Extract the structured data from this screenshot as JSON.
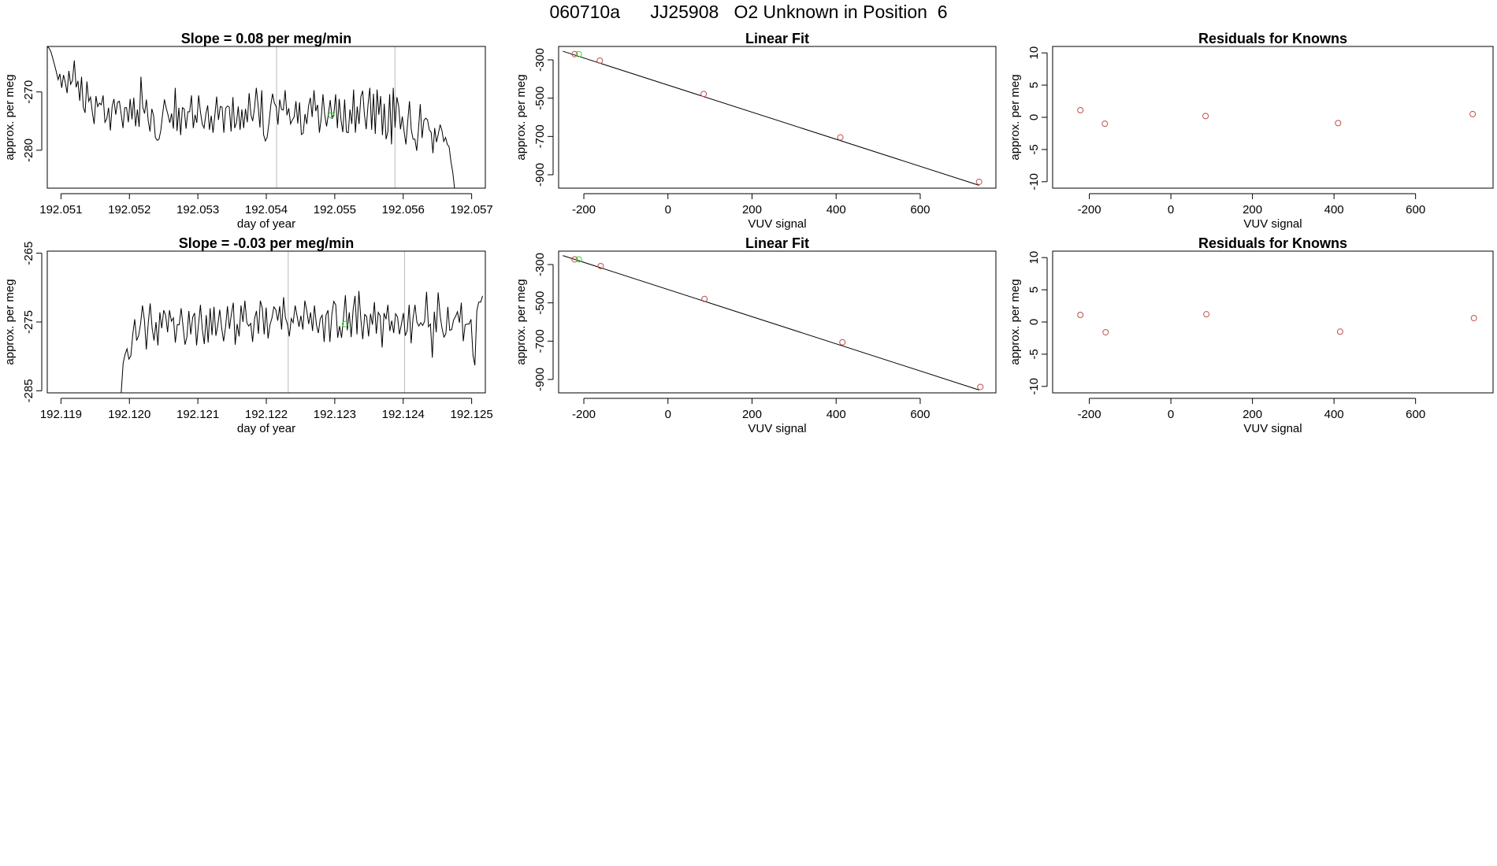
{
  "page": {
    "title": "060710a      JJ25908   O2 Unknown in Position  6",
    "accent_colors": {
      "known_points": "#c0504d",
      "unknown_point": "#33dd33",
      "line": "#000000",
      "marker_lines": "#bbbbbb"
    }
  },
  "chart_data": [
    {
      "type": "line",
      "title": "Slope =  0.08  per meg/min",
      "xlabel": "day of year",
      "ylabel": "approx. per meg",
      "xlim": [
        192.0508,
        192.0572
      ],
      "ylim": [
        -286.5,
        -262.2
      ],
      "xticks": [
        192.051,
        192.052,
        192.053,
        192.054,
        192.055,
        192.056,
        192.057
      ],
      "xtick_labels": [
        "192.051",
        "192.052",
        "192.053",
        "192.054",
        "192.055",
        "192.056",
        "192.057"
      ],
      "yticks": [
        -270,
        -280
      ],
      "ytick_labels": [
        "-270",
        "-280"
      ],
      "vlines": [
        192.05415,
        192.05588
      ],
      "marker": {
        "x": 192.05495,
        "y": -274.0,
        "color": "green"
      },
      "series": [
        {
          "x_start": 192.0508,
          "x_end": 192.05675,
          "values": [
            -262.2,
            -262.5,
            -263.1,
            -264.2,
            -265.3,
            -266.5,
            -267.9,
            -266.9,
            -269.3,
            -267.1,
            -268.4,
            -270.2,
            -266.4,
            -268.7,
            -268.0,
            -264.6,
            -269.2,
            -268.1,
            -271.5,
            -267.4,
            -272.6,
            -273.6,
            -268.2,
            -271.6,
            -270.9,
            -273.5,
            -275.5,
            -270.7,
            -272.5,
            -271.9,
            -272.2,
            -270.6,
            -275.2,
            -274.6,
            -272.7,
            -276.6,
            -272.5,
            -271.2,
            -273.9,
            -271.8,
            -271.6,
            -273.8,
            -276.2,
            -272.7,
            -272.7,
            -275.2,
            -271.2,
            -274.7,
            -271.0,
            -275.9,
            -273.0,
            -276.0,
            -267.4,
            -272.6,
            -273.7,
            -271.3,
            -274.9,
            -276.8,
            -272.9,
            -274.0,
            -277.8,
            -278.3,
            -278.1,
            -276.6,
            -273.8,
            -271.3,
            -272.8,
            -273.9,
            -275.3,
            -273.7,
            -276.3,
            -269.3,
            -276.7,
            -272.7,
            -277.4,
            -272.7,
            -272.9,
            -276.3,
            -273.4,
            -273.4,
            -270.6,
            -276.2,
            -273.9,
            -275.3,
            -270.6,
            -273.4,
            -275.5,
            -276.2,
            -273.8,
            -272.3,
            -276.5,
            -274.1,
            -277.0,
            -274.0,
            -270.8,
            -274.8,
            -272.5,
            -272.6,
            -277.0,
            -272.8,
            -272.4,
            -272.6,
            -276.8,
            -270.9,
            -276.2,
            -275.2,
            -272.5,
            -276.5,
            -273.0,
            -276.2,
            -272.9,
            -275.2,
            -270.2,
            -273.9,
            -275.0,
            -272.8,
            -269.3,
            -272.3,
            -276.1,
            -269.7,
            -277.3,
            -278.4,
            -277.8,
            -275.4,
            -272.4,
            -270.3,
            -271.9,
            -272.5,
            -275.6,
            -271.3,
            -273.0,
            -273.1,
            -269.7,
            -274.0,
            -272.8,
            -275.5,
            -274.8,
            -274.3,
            -271.6,
            -275.4,
            -271.8,
            -277.3,
            -277.1,
            -273.8,
            -275.5,
            -272.4,
            -271.0,
            -274.3,
            -269.7,
            -273.3,
            -272.2,
            -277.0,
            -274.5,
            -270.4,
            -274.0,
            -275.9,
            -273.8,
            -271.4,
            -274.6,
            -273.8,
            -270.4,
            -276.2,
            -271.2,
            -274.8,
            -276.9,
            -271.3,
            -276.9,
            -277.0,
            -273.0,
            -275.5,
            -269.6,
            -277.0,
            -272.5,
            -275.5,
            -270.8,
            -269.8,
            -273.8,
            -276.4,
            -272.2,
            -269.3,
            -276.5,
            -270.3,
            -277.2,
            -269.6,
            -273.9,
            -270.7,
            -277.4,
            -272.0,
            -278.1,
            -276.8,
            -270.4,
            -279.0,
            -269.3,
            -276.1,
            -270.9,
            -272.4,
            -276.4,
            -274.2,
            -276.8,
            -279.0,
            -275.2,
            -271.6,
            -276.5,
            -278.1,
            -278.1,
            -280.1,
            -276.3,
            -272.1,
            -277.9,
            -274.9,
            -274.5,
            -274.8,
            -276.5,
            -276.9,
            -280.5,
            -276.2,
            -278.6,
            -277.2,
            -275.6,
            -276.6,
            -278.5,
            -277.8,
            -279.0,
            -279.4,
            -281.9,
            -283.7,
            -286.5
          ]
        }
      ]
    },
    {
      "type": "scatter",
      "title": "Linear Fit",
      "xlabel": "VUV signal",
      "ylabel": "approx. per meg",
      "xlim": [
        -260,
        780
      ],
      "ylim": [
        -970,
        -230
      ],
      "xticks": [
        -200,
        0,
        200,
        400,
        600
      ],
      "xtick_labels": [
        "-200",
        "0",
        "200",
        "400",
        "600"
      ],
      "yticks": [
        -300,
        -500,
        -700,
        -900
      ],
      "ytick_labels": [
        "-300",
        "-500",
        "-700",
        "-900"
      ],
      "fit_line": {
        "x": [
          -250,
          740
        ],
        "y": [
          -255,
          -955
        ]
      },
      "known_points": {
        "x": [
          -222,
          -162,
          85,
          410,
          740
        ],
        "y": [
          -270,
          -304,
          -478,
          -705,
          -937
        ]
      },
      "unknown_point": {
        "x": -212,
        "y": -270
      }
    },
    {
      "type": "scatter",
      "title": "Residuals for Knowns",
      "xlabel": "VUV signal",
      "ylabel": "approx. per meg",
      "xlim": [
        -290,
        790
      ],
      "ylim": [
        -11,
        11
      ],
      "xticks": [
        -200,
        0,
        200,
        400,
        600
      ],
      "xtick_labels": [
        "-200",
        "0",
        "200",
        "400",
        "600"
      ],
      "yticks": [
        10,
        5,
        0,
        -5,
        -10
      ],
      "ytick_labels": [
        "10",
        "5",
        "0",
        "-5",
        "-10"
      ],
      "known_points": {
        "x": [
          -222,
          -162,
          85,
          410,
          740
        ],
        "y": [
          1.1,
          -1.0,
          0.2,
          -0.9,
          0.5
        ]
      }
    },
    {
      "type": "line",
      "title": "Slope =  -0.03  per meg/min",
      "xlabel": "day of year",
      "ylabel": "approx. per meg",
      "xlim": [
        192.1188,
        192.1252
      ],
      "ylim": [
        -285.3,
        -264.7
      ],
      "xticks": [
        192.119,
        192.12,
        192.121,
        192.122,
        192.123,
        192.124,
        192.125
      ],
      "xtick_labels": [
        "192.119",
        "192.120",
        "192.121",
        "192.122",
        "192.123",
        "192.124",
        "192.125"
      ],
      "yticks": [
        -265,
        -275,
        -285
      ],
      "ytick_labels": [
        "-265",
        "-275",
        "-285"
      ],
      "vlines": [
        192.12232,
        192.12402
      ],
      "marker": {
        "x": 192.12315,
        "y": -275.3,
        "color": "green"
      },
      "series": [
        {
          "x_start": 192.11988,
          "x_end": 192.12516,
          "values": [
            -285.3,
            -281.0,
            -279.7,
            -278.9,
            -280.4,
            -279.9,
            -276.8,
            -274.6,
            -277.7,
            -277.0,
            -275.3,
            -272.6,
            -274.7,
            -279.0,
            -275.1,
            -272.3,
            -275.9,
            -277.7,
            -275.0,
            -278.4,
            -273.6,
            -275.9,
            -273.3,
            -274.0,
            -276.5,
            -273.3,
            -274.9,
            -274.4,
            -278.0,
            -275.4,
            -275.4,
            -273.0,
            -275.6,
            -278.3,
            -277.2,
            -273.4,
            -276.8,
            -274.3,
            -273.7,
            -278.4,
            -275.4,
            -272.5,
            -276.1,
            -278.2,
            -274.0,
            -278.0,
            -273.0,
            -276.9,
            -272.8,
            -277.0,
            -275.4,
            -273.2,
            -275.9,
            -277.8,
            -275.7,
            -272.7,
            -276.0,
            -273.9,
            -272.2,
            -278.3,
            -275.3,
            -277.1,
            -272.6,
            -275.0,
            -271.9,
            -275.1,
            -275.6,
            -275.2,
            -277.9,
            -274.5,
            -273.4,
            -276.7,
            -271.9,
            -273.0,
            -276.8,
            -272.9,
            -277.4,
            -275.4,
            -274.4,
            -272.8,
            -273.2,
            -274.8,
            -272.7,
            -276.1,
            -271.4,
            -274.4,
            -275.3,
            -277.1,
            -274.5,
            -275.1,
            -272.6,
            -274.1,
            -275.7,
            -274.1,
            -276.1,
            -271.9,
            -273.3,
            -275.3,
            -273.6,
            -276.3,
            -272.6,
            -275.4,
            -276.6,
            -274.5,
            -274.0,
            -277.9,
            -274.0,
            -273.3,
            -277.9,
            -273.9,
            -272.0,
            -272.5,
            -277.3,
            -275.6,
            -277.3,
            -274.5,
            -271.1,
            -276.2,
            -273.6,
            -277.2,
            -273.2,
            -271.2,
            -276.8,
            -270.5,
            -274.6,
            -277.5,
            -273.9,
            -274.2,
            -277.1,
            -273.8,
            -275.4,
            -272.1,
            -276.7,
            -273.6,
            -274.1,
            -278.7,
            -273.7,
            -274.6,
            -272.5,
            -276.3,
            -274.8,
            -276.6,
            -273.8,
            -274.3,
            -276.8,
            -275.3,
            -273.7,
            -277.0,
            -276.2,
            -272.5,
            -278.1,
            -274.5,
            -272.5,
            -275.0,
            -275.6,
            -275.1,
            -275.5,
            -274.9,
            -270.6,
            -275.7,
            -275.3,
            -280.2,
            -273.5,
            -276.5,
            -270.7,
            -274.0,
            -275.9,
            -277.2,
            -276.7,
            -272.8,
            -276.2,
            -276.1,
            -274.7,
            -274.2,
            -273.5,
            -275.1,
            -272.2,
            -277.8,
            -275.4,
            -275.3,
            -275.3,
            -274.6,
            -279.8,
            -281.3,
            -273.4,
            -272.1,
            -272.1,
            -271.2
          ]
        }
      ]
    },
    {
      "type": "scatter",
      "title": "Linear Fit",
      "xlabel": "VUV signal",
      "ylabel": "approx. per meg",
      "xlim": [
        -260,
        780
      ],
      "ylim": [
        -970,
        -230
      ],
      "xticks": [
        -200,
        0,
        200,
        400,
        600
      ],
      "xtick_labels": [
        "-200",
        "0",
        "200",
        "400",
        "600"
      ],
      "yticks": [
        -300,
        -500,
        -700,
        -900
      ],
      "ytick_labels": [
        "-300",
        "-500",
        "-700",
        "-900"
      ],
      "fit_line": {
        "x": [
          -250,
          740
        ],
        "y": [
          -253,
          -955
        ]
      },
      "known_points": {
        "x": [
          -222,
          -160,
          87,
          415,
          743
        ],
        "y": [
          -273,
          -308,
          -480,
          -706,
          -939
        ]
      },
      "unknown_point": {
        "x": -212,
        "y": -273
      }
    },
    {
      "type": "scatter",
      "title": "Residuals for Knowns",
      "xlabel": "VUV signal",
      "ylabel": "approx. per meg",
      "xlim": [
        -290,
        790
      ],
      "ylim": [
        -11,
        11
      ],
      "xticks": [
        -200,
        0,
        200,
        400,
        600
      ],
      "xtick_labels": [
        "-200",
        "0",
        "200",
        "400",
        "600"
      ],
      "yticks": [
        10,
        5,
        0,
        -5,
        -10
      ],
      "ytick_labels": [
        "10",
        "5",
        "0",
        "-5",
        "-10"
      ],
      "known_points": {
        "x": [
          -222,
          -160,
          87,
          415,
          743
        ],
        "y": [
          1.1,
          -1.6,
          1.2,
          -1.5,
          0.6
        ]
      }
    }
  ]
}
